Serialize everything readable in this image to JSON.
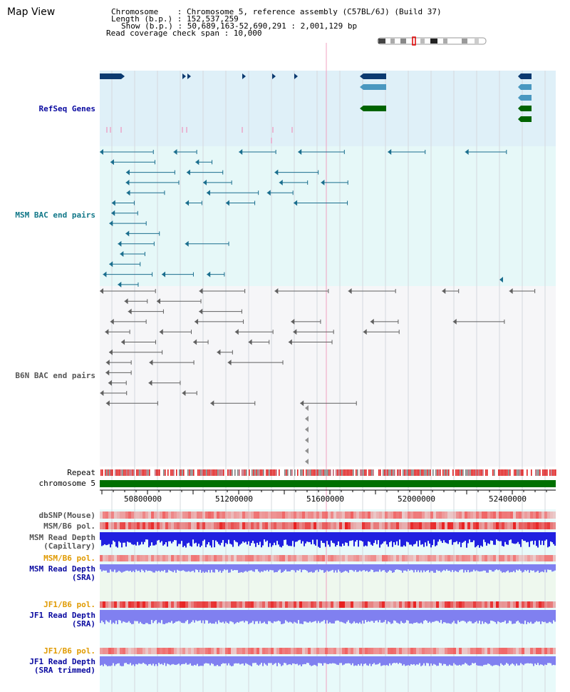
{
  "view_title": "Map View",
  "info": {
    "chromosome": "Chromosome    : Chromosome 5, reference assembly (C57BL/6J) (Build 37)",
    "length": "Length (b.p.) : 152,537,259",
    "show": "Show (b.p.) : 50,689,163-52,690,291 : 2,001,129 bp",
    "coverage": "Read coverage check span : 10,000"
  },
  "tracks": {
    "refseq": "RefSeq Genes",
    "msm_bac": "MSM BAC end pairs",
    "b6n_bac": "B6N BAC end pairs",
    "repeat": "Repeat",
    "chromosome": "chromosome 5",
    "dbsnp": "dbSNP(Mouse)",
    "msm_b6_pol_1": "MSM/B6 pol.",
    "msm_depth_cap_1": "MSM Read Depth",
    "msm_depth_cap_2": "(Capillary)",
    "msm_b6_pol_2": "MSM/B6 pol.",
    "msm_depth_sra_1": "MSM Read Depth",
    "msm_depth_sra_2": "(SRA)",
    "jf1_b6_pol_1": "JF1/B6 pol.",
    "jf1_depth_sra_1": "JF1 Read Depth",
    "jf1_depth_sra_2": "(SRA)",
    "jf1_b6_pol_2": "JF1/B6 pol.",
    "jf1_depth_trim_1": "JF1 Read Depth",
    "jf1_depth_trim_2": "(SRA trimmed)"
  },
  "ruler": {
    "ticks": [
      "50800000",
      "51200000",
      "51600000",
      "52000000",
      "52400000"
    ]
  },
  "colors": {
    "refseq_bg": "#dff0f8",
    "msm_bg": "#e6f8f8",
    "b6n_bg": "#f6f6f8",
    "refseq_dark": "#0b3a70",
    "refseq_light": "#4a98c0",
    "refseq_green": "#006400",
    "msm_feature": "#1a6e8e",
    "b6n_feature": "#606060",
    "chrom_bar": "#007000",
    "depth_blue": "#2020e0",
    "depth_light": "#8080f0",
    "pol_red": "#e82020"
  }
}
